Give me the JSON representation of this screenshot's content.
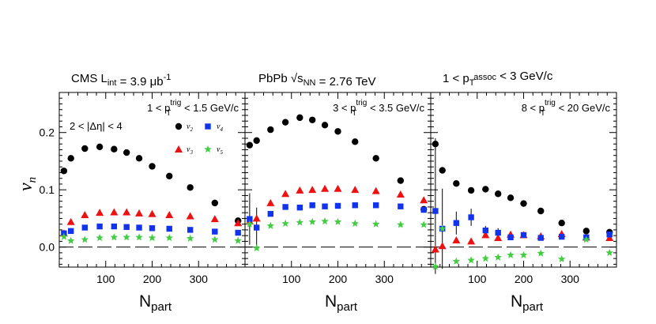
{
  "chart_data": {
    "type": "scatter",
    "ylabel": "v_n",
    "xlabel": "N_part",
    "xlim": [
      0,
      400
    ],
    "ylim": [
      -0.035,
      0.27
    ],
    "x_ticks": [
      100,
      200,
      300
    ],
    "y_ticks": [
      0.0,
      0.1,
      0.2
    ],
    "y_tick_labels": [
      "0.0",
      "0.1",
      "0.2"
    ],
    "colors": {
      "v2": "#000000",
      "v3": "#ee1111",
      "v4": "#1133ee",
      "v5": "#44cc44"
    },
    "legend": {
      "v2": "v2",
      "v3": "v3",
      "v4": "v4",
      "v5": "v5",
      "eta_cut": "2 < |Δη| < 4"
    },
    "header": {
      "left": "CMS L_int = 3.9 μb^-1",
      "center": "PbPb √s_NN = 2.76 TeV",
      "right": "1 < p_T^assoc < 3 GeV/c"
    },
    "panels": [
      {
        "label": "1 < p_T^trig < 1.5 GeV/c",
        "series": [
          {
            "name": "v2",
            "x": [
              10,
              25,
              55,
              87,
              118,
              145,
              172,
              200,
              237,
              282,
              335,
              385
            ],
            "y": [
              0.133,
              0.155,
              0.172,
              0.175,
              0.171,
              0.165,
              0.155,
              0.141,
              0.124,
              0.104,
              0.077,
              0.046
            ]
          },
          {
            "name": "v3",
            "x": [
              10,
              25,
              55,
              87,
              118,
              145,
              172,
              200,
              237,
              282,
              335,
              385
            ],
            "y": [
              0.024,
              0.044,
              0.056,
              0.06,
              0.061,
              0.061,
              0.059,
              0.058,
              0.056,
              0.054,
              0.049,
              0.042
            ]
          },
          {
            "name": "v4",
            "x": [
              10,
              25,
              55,
              87,
              118,
              145,
              172,
              200,
              237,
              282,
              335,
              385
            ],
            "y": [
              0.024,
              0.028,
              0.034,
              0.036,
              0.036,
              0.035,
              0.034,
              0.033,
              0.032,
              0.03,
              0.027,
              0.025
            ]
          },
          {
            "name": "v5",
            "x": [
              10,
              25,
              55,
              87,
              118,
              145,
              172,
              200,
              237,
              282,
              335,
              385
            ],
            "y": [
              0.018,
              0.011,
              0.013,
              0.016,
              0.017,
              0.017,
              0.017,
              0.016,
              0.016,
              0.015,
              0.013,
              0.011
            ]
          }
        ]
      },
      {
        "label": "3 < p_T^trig < 3.5 GeV/c",
        "series": [
          {
            "name": "v2",
            "x": [
              10,
              25,
              55,
              87,
              118,
              145,
              172,
              200,
              237,
              282,
              335,
              385
            ],
            "y": [
              0.178,
              0.186,
              0.205,
              0.218,
              0.226,
              0.222,
              0.213,
              0.202,
              0.184,
              0.155,
              0.116,
              0.066
            ]
          },
          {
            "name": "v3",
            "x": [
              10,
              25,
              55,
              87,
              118,
              145,
              172,
              200,
              237,
              282,
              335,
              385
            ],
            "y": [
              0.045,
              0.05,
              0.077,
              0.093,
              0.099,
              0.1,
              0.102,
              0.102,
              0.1,
              0.098,
              0.092,
              0.082
            ]
          },
          {
            "name": "v4",
            "x": [
              10,
              25,
              55,
              87,
              118,
              145,
              172,
              200,
              237,
              282,
              335,
              385
            ],
            "y": [
              0.049,
              0.034,
              0.058,
              0.07,
              0.069,
              0.073,
              0.071,
              0.072,
              0.073,
              0.073,
              0.071,
              0.065
            ]
          },
          {
            "name": "v5",
            "x": [
              10,
              25,
              55,
              87,
              118,
              145,
              172,
              200,
              237,
              282,
              335,
              385
            ],
            "y": [
              0.04,
              -0.002,
              0.037,
              0.041,
              0.043,
              0.044,
              0.045,
              0.044,
              0.041,
              0.04,
              0.039,
              0.039
            ]
          }
        ],
        "errors": [
          {
            "x": 10,
            "y": 0.049,
            "err": 0.045
          },
          {
            "x": 25,
            "y": 0.034,
            "err": 0.035
          }
        ]
      },
      {
        "label": "8 < p_T^trig < 20 GeV/c",
        "series": [
          {
            "name": "v2",
            "x": [
              10,
              25,
              55,
              87,
              118,
              145,
              172,
              200,
              237,
              282,
              335,
              385
            ],
            "y": [
              0.18,
              0.134,
              0.111,
              0.099,
              0.101,
              0.093,
              0.086,
              0.076,
              0.063,
              0.042,
              0.028,
              0.026
            ]
          },
          {
            "name": "v3",
            "x": [
              10,
              25,
              55,
              87,
              118,
              145,
              172,
              200,
              237,
              282,
              335,
              385
            ],
            "y": [
              -0.004,
              0.002,
              0.012,
              0.01,
              0.021,
              0.016,
              0.022,
              0.021,
              0.019,
              0.023,
              0.017,
              0.016
            ]
          },
          {
            "name": "v4",
            "x": [
              10,
              25,
              55,
              87,
              118,
              145,
              172,
              200,
              237,
              282,
              335,
              385
            ],
            "y": [
              0.063,
              0.032,
              0.042,
              0.052,
              0.029,
              0.025,
              0.017,
              0.021,
              0.016,
              0.018,
              0.017,
              0.022
            ]
          },
          {
            "name": "v5",
            "x": [
              10,
              25,
              55,
              87,
              118,
              145,
              172,
              200,
              237,
              282,
              335,
              385
            ],
            "y": [
              -0.034,
              0.032,
              -0.025,
              -0.023,
              -0.02,
              -0.018,
              -0.014,
              -0.014,
              -0.011,
              -0.021,
              0.013,
              -0.01
            ]
          }
        ],
        "errors": [
          {
            "x": 10,
            "y": 0.18,
            "err": 0.01
          },
          {
            "x": 10,
            "y": 0.063,
            "err": 0.11
          },
          {
            "x": 25,
            "y": 0.032,
            "err": 0.07
          },
          {
            "x": 55,
            "y": 0.042,
            "err": 0.02
          },
          {
            "x": 87,
            "y": 0.052,
            "err": 0.015
          },
          {
            "x": 118,
            "y": 0.029,
            "err": 0.008
          },
          {
            "x": 145,
            "y": 0.025,
            "err": 0.008
          }
        ]
      }
    ]
  }
}
